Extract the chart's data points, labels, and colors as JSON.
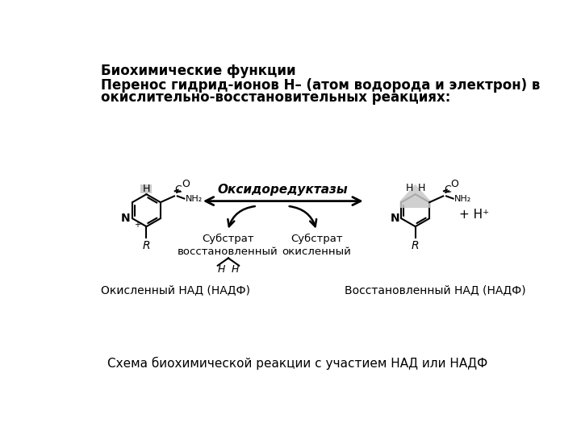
{
  "background_color": "#ffffff",
  "title1": "Биохимические функции",
  "title2_line1": "Перенос гидрид-ионов Н– (атом водорода и электрон) в",
  "title2_line2": "окислительно-восстановительных реакциях:",
  "enzyme_label": "Оксидоредуктазы",
  "substrate_left": "Субстрат\nвосстановленный",
  "substrate_right": "Субстрат\nокисленный",
  "label_left": "Окисленный НАД (НАДФ)",
  "label_right": "Восстановленный НАД (НАДФ)",
  "bottom_label": "Схема биохимической реакции с участием НАД или НАДФ"
}
